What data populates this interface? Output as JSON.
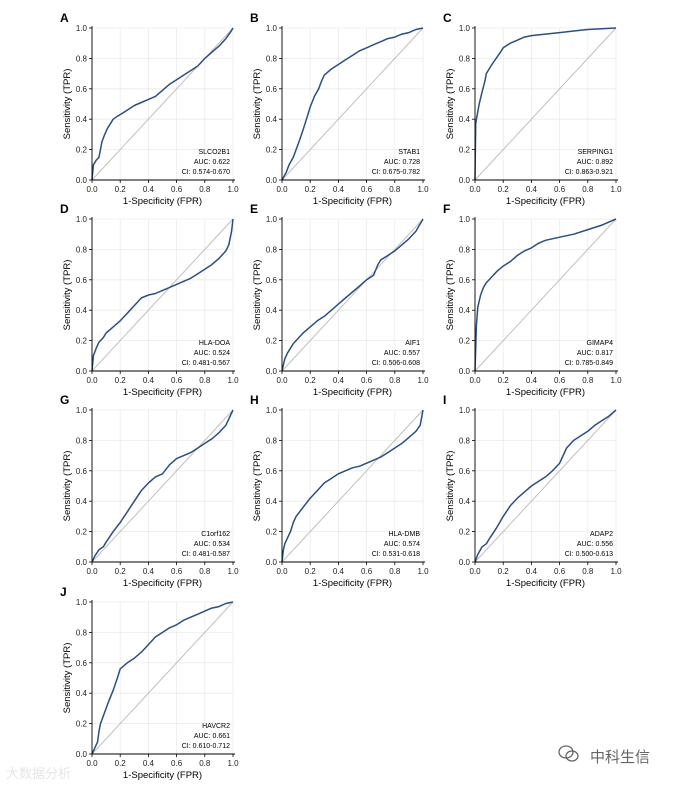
{
  "colors": {
    "curve": "#2b4f80",
    "diagonal": "#bfbfbf",
    "grid": "#ebebeb",
    "axis": "#000000",
    "watermark_left": "#e6e6e6",
    "watermark_right": "#666666"
  },
  "axes": {
    "xlabel": "1-Specificity (FPR)",
    "ylabel": "Sensitivity (TPR)",
    "ticks": [
      "0.0",
      "0.2",
      "0.4",
      "0.6",
      "0.8",
      "1.0"
    ],
    "xlim": [
      0,
      1
    ],
    "ylim": [
      0,
      1
    ]
  },
  "chart_data": [
    {
      "type": "line",
      "panel": "A",
      "gene": "SLCO2B1",
      "auc": "AUC: 0.622",
      "ci": "CI: 0.574-0.670",
      "x": [
        0,
        0.01,
        0.03,
        0.05,
        0.07,
        0.09,
        0.11,
        0.13,
        0.15,
        0.18,
        0.2,
        0.25,
        0.3,
        0.35,
        0.4,
        0.45,
        0.5,
        0.55,
        0.6,
        0.65,
        0.7,
        0.75,
        0.8,
        0.85,
        0.9,
        0.95,
        0.98,
        1.0
      ],
      "y": [
        0,
        0.1,
        0.13,
        0.15,
        0.25,
        0.3,
        0.34,
        0.37,
        0.4,
        0.42,
        0.43,
        0.46,
        0.49,
        0.51,
        0.53,
        0.55,
        0.59,
        0.63,
        0.66,
        0.69,
        0.72,
        0.75,
        0.8,
        0.84,
        0.88,
        0.93,
        0.97,
        1.0
      ]
    },
    {
      "type": "line",
      "panel": "B",
      "gene": "STAB1",
      "auc": "AUC: 0.728",
      "ci": "CI: 0.675-0.782",
      "x": [
        0,
        0.03,
        0.05,
        0.08,
        0.1,
        0.12,
        0.15,
        0.18,
        0.2,
        0.23,
        0.26,
        0.28,
        0.3,
        0.35,
        0.4,
        0.45,
        0.5,
        0.55,
        0.6,
        0.65,
        0.7,
        0.75,
        0.8,
        0.85,
        0.9,
        0.95,
        1.0
      ],
      "y": [
        0,
        0.05,
        0.1,
        0.15,
        0.2,
        0.25,
        0.33,
        0.42,
        0.48,
        0.55,
        0.6,
        0.65,
        0.69,
        0.73,
        0.76,
        0.79,
        0.82,
        0.85,
        0.87,
        0.89,
        0.91,
        0.93,
        0.94,
        0.96,
        0.97,
        0.99,
        1.0
      ]
    },
    {
      "type": "line",
      "panel": "C",
      "gene": "SERPING1",
      "auc": "AUC: 0.892",
      "ci": "CI: 0.863-0.921",
      "x": [
        0,
        0.005,
        0.01,
        0.02,
        0.03,
        0.05,
        0.07,
        0.08,
        0.1,
        0.12,
        0.15,
        0.18,
        0.2,
        0.25,
        0.3,
        0.35,
        0.4,
        0.5,
        0.6,
        0.7,
        0.8,
        0.9,
        1.0
      ],
      "y": [
        0,
        0.37,
        0.4,
        0.45,
        0.5,
        0.58,
        0.65,
        0.7,
        0.73,
        0.76,
        0.8,
        0.84,
        0.87,
        0.9,
        0.92,
        0.94,
        0.95,
        0.96,
        0.97,
        0.98,
        0.99,
        0.995,
        1.0
      ]
    },
    {
      "type": "line",
      "panel": "D",
      "gene": "HLA-DOA",
      "auc": "AUC: 0.524",
      "ci": "CI: 0.481-0.567",
      "x": [
        0,
        0.01,
        0.03,
        0.05,
        0.08,
        0.1,
        0.15,
        0.2,
        0.25,
        0.3,
        0.35,
        0.4,
        0.45,
        0.5,
        0.55,
        0.6,
        0.65,
        0.7,
        0.75,
        0.8,
        0.85,
        0.9,
        0.95,
        0.97,
        0.99,
        1.0
      ],
      "y": [
        0,
        0.1,
        0.15,
        0.19,
        0.22,
        0.25,
        0.29,
        0.33,
        0.38,
        0.43,
        0.48,
        0.5,
        0.51,
        0.53,
        0.55,
        0.57,
        0.59,
        0.61,
        0.64,
        0.67,
        0.7,
        0.74,
        0.79,
        0.83,
        0.92,
        1.0
      ]
    },
    {
      "type": "line",
      "panel": "E",
      "gene": "AIF1",
      "auc": "AUC: 0.557",
      "ci": "CI: 0.506-0.608",
      "x": [
        0,
        0.02,
        0.04,
        0.06,
        0.08,
        0.1,
        0.15,
        0.2,
        0.25,
        0.3,
        0.35,
        0.4,
        0.45,
        0.5,
        0.55,
        0.6,
        0.65,
        0.68,
        0.7,
        0.75,
        0.8,
        0.85,
        0.9,
        0.95,
        1.0
      ],
      "y": [
        0,
        0.08,
        0.12,
        0.15,
        0.18,
        0.2,
        0.25,
        0.29,
        0.33,
        0.36,
        0.4,
        0.44,
        0.48,
        0.52,
        0.56,
        0.6,
        0.63,
        0.7,
        0.73,
        0.76,
        0.79,
        0.83,
        0.87,
        0.92,
        1.0
      ]
    },
    {
      "type": "line",
      "panel": "F",
      "gene": "GIMAP4",
      "auc": "AUC: 0.817",
      "ci": "CI: 0.785-0.849",
      "x": [
        0,
        0.005,
        0.01,
        0.02,
        0.04,
        0.06,
        0.08,
        0.1,
        0.13,
        0.16,
        0.2,
        0.25,
        0.3,
        0.35,
        0.4,
        0.45,
        0.5,
        0.6,
        0.7,
        0.8,
        0.9,
        1.0
      ],
      "y": [
        0,
        0.15,
        0.3,
        0.42,
        0.5,
        0.55,
        0.58,
        0.6,
        0.63,
        0.66,
        0.69,
        0.72,
        0.76,
        0.79,
        0.81,
        0.84,
        0.86,
        0.88,
        0.9,
        0.93,
        0.96,
        1.0
      ]
    },
    {
      "type": "line",
      "panel": "G",
      "gene": "C1orf162",
      "auc": "AUC: 0.534",
      "ci": "CI: 0.481-0.587",
      "x": [
        0,
        0.02,
        0.05,
        0.08,
        0.1,
        0.15,
        0.2,
        0.25,
        0.3,
        0.35,
        0.4,
        0.45,
        0.5,
        0.55,
        0.6,
        0.65,
        0.7,
        0.75,
        0.8,
        0.85,
        0.9,
        0.95,
        1.0
      ],
      "y": [
        0,
        0.04,
        0.08,
        0.1,
        0.13,
        0.2,
        0.26,
        0.33,
        0.4,
        0.47,
        0.52,
        0.56,
        0.58,
        0.64,
        0.68,
        0.7,
        0.72,
        0.75,
        0.78,
        0.81,
        0.85,
        0.9,
        1.0
      ]
    },
    {
      "type": "line",
      "panel": "H",
      "gene": "HLA-DMB",
      "auc": "AUC: 0.574",
      "ci": "CI: 0.531-0.618",
      "x": [
        0,
        0.01,
        0.02,
        0.04,
        0.06,
        0.08,
        0.1,
        0.15,
        0.2,
        0.25,
        0.3,
        0.35,
        0.4,
        0.45,
        0.5,
        0.55,
        0.6,
        0.65,
        0.7,
        0.75,
        0.8,
        0.85,
        0.9,
        0.95,
        0.98,
        1.0
      ],
      "y": [
        0,
        0.08,
        0.12,
        0.16,
        0.2,
        0.26,
        0.3,
        0.36,
        0.42,
        0.47,
        0.52,
        0.55,
        0.58,
        0.6,
        0.62,
        0.63,
        0.65,
        0.67,
        0.69,
        0.72,
        0.75,
        0.78,
        0.82,
        0.86,
        0.9,
        1.0
      ]
    },
    {
      "type": "line",
      "panel": "I",
      "gene": "ADAP2",
      "auc": "AUC: 0.556",
      "ci": "CI: 0.500-0.613",
      "x": [
        0,
        0.02,
        0.05,
        0.08,
        0.1,
        0.15,
        0.2,
        0.25,
        0.3,
        0.35,
        0.4,
        0.45,
        0.5,
        0.55,
        0.6,
        0.65,
        0.7,
        0.75,
        0.8,
        0.85,
        0.9,
        0.95,
        1.0
      ],
      "y": [
        0,
        0.05,
        0.1,
        0.12,
        0.15,
        0.22,
        0.3,
        0.37,
        0.42,
        0.46,
        0.5,
        0.53,
        0.56,
        0.6,
        0.65,
        0.75,
        0.8,
        0.83,
        0.86,
        0.9,
        0.93,
        0.96,
        1.0
      ]
    },
    {
      "type": "line",
      "panel": "J",
      "gene": "HAVCR2",
      "auc": "AUC: 0.661",
      "ci": "CI: 0.610-0.712",
      "x": [
        0,
        0.02,
        0.04,
        0.05,
        0.06,
        0.08,
        0.1,
        0.12,
        0.15,
        0.18,
        0.2,
        0.25,
        0.3,
        0.35,
        0.4,
        0.45,
        0.5,
        0.55,
        0.6,
        0.65,
        0.7,
        0.75,
        0.8,
        0.85,
        0.9,
        0.95,
        1.0
      ],
      "y": [
        0,
        0.04,
        0.08,
        0.15,
        0.2,
        0.25,
        0.3,
        0.35,
        0.42,
        0.5,
        0.56,
        0.6,
        0.63,
        0.67,
        0.72,
        0.77,
        0.8,
        0.83,
        0.85,
        0.88,
        0.9,
        0.92,
        0.94,
        0.96,
        0.97,
        0.99,
        1.0
      ]
    }
  ],
  "watermark": {
    "left": "大数据分析",
    "right": "中科生信"
  }
}
